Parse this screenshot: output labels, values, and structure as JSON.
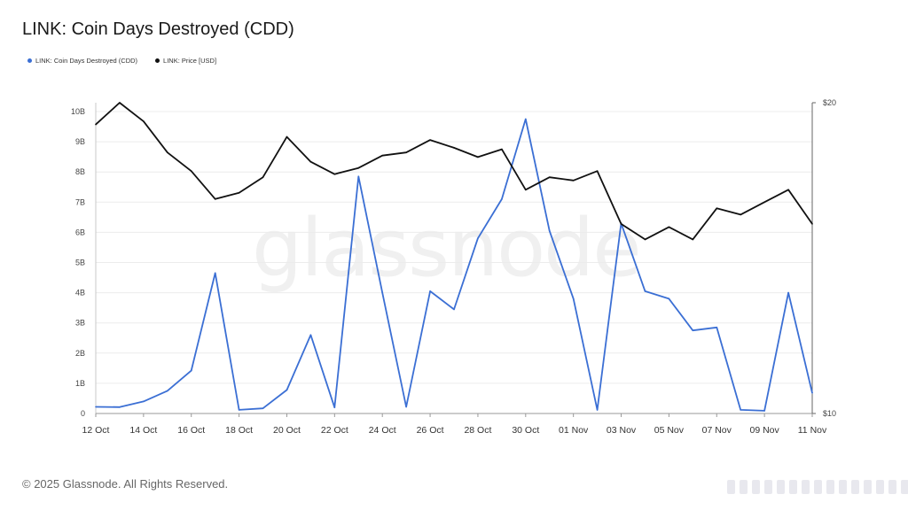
{
  "header": {
    "title": "LINK: Coin Days Destroyed (CDD)"
  },
  "footer": {
    "copyright": "© 2025 Glassnode. All Rights Reserved."
  },
  "watermark": "glassnode",
  "chart_data": {
    "type": "line",
    "title": "LINK: Coin Days Destroyed (CDD)",
    "legend_position": "top-left",
    "grid": true,
    "x": [
      "12 Oct",
      "13 Oct",
      "14 Oct",
      "15 Oct",
      "16 Oct",
      "17 Oct",
      "18 Oct",
      "19 Oct",
      "20 Oct",
      "21 Oct",
      "22 Oct",
      "23 Oct",
      "24 Oct",
      "25 Oct",
      "26 Oct",
      "27 Oct",
      "28 Oct",
      "29 Oct",
      "30 Oct",
      "31 Oct",
      "01 Nov",
      "02 Nov",
      "03 Nov",
      "04 Nov",
      "05 Nov",
      "06 Nov",
      "07 Nov",
      "08 Nov",
      "09 Nov",
      "10 Nov",
      "11 Nov"
    ],
    "x_tick_labels": [
      "12 Oct",
      "14 Oct",
      "16 Oct",
      "18 Oct",
      "20 Oct",
      "22 Oct",
      "24 Oct",
      "26 Oct",
      "28 Oct",
      "30 Oct",
      "01 Nov",
      "03 Nov",
      "05 Nov",
      "07 Nov",
      "09 Nov",
      "11 Nov"
    ],
    "y_left": {
      "min": 0,
      "max": 10,
      "ticks": [
        "0",
        "1B",
        "2B",
        "3B",
        "4B",
        "5B",
        "6B",
        "7B",
        "8B",
        "9B",
        "10B"
      ]
    },
    "y_right": {
      "min": 10,
      "max": 20,
      "ticks": [
        "$10",
        "$20"
      ]
    },
    "series": [
      {
        "name": "LINK: Coin Days Destroyed (CDD)",
        "color": "#3b6fd4",
        "axis": "left",
        "unit": "B",
        "values": [
          0.22,
          0.21,
          0.4,
          0.75,
          1.42,
          4.65,
          0.12,
          0.17,
          0.78,
          2.6,
          0.2,
          7.85,
          4.0,
          0.22,
          4.05,
          3.45,
          5.8,
          7.1,
          9.75,
          6.05,
          3.8,
          0.12,
          6.3,
          4.05,
          3.8,
          2.75,
          2.85,
          0.12,
          0.09,
          4.0,
          0.68
        ]
      },
      {
        "name": "LINK: Price [USD]",
        "color": "#111111",
        "axis": "right",
        "unit": "USD",
        "values": [
          19.3,
          20.0,
          19.4,
          18.4,
          17.8,
          16.9,
          17.1,
          17.6,
          18.9,
          18.1,
          17.7,
          17.9,
          18.3,
          18.4,
          18.8,
          18.55,
          18.25,
          18.5,
          17.2,
          17.6,
          17.5,
          17.8,
          16.1,
          15.6,
          16.0,
          15.6,
          16.6,
          16.4,
          16.8,
          17.2,
          16.1
        ]
      }
    ]
  }
}
